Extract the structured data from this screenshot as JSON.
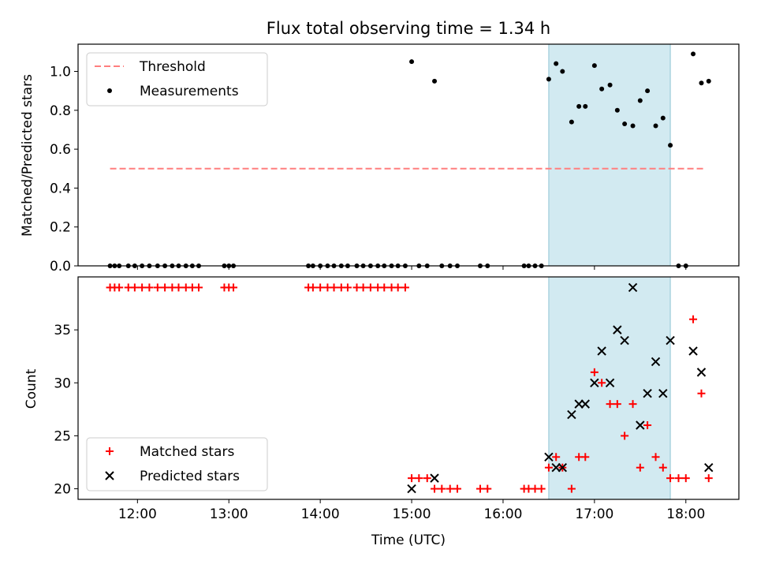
{
  "chart_data": [
    {
      "type": "scatter",
      "title": "Flux total observing time = 1.34 h",
      "ylabel": "Matched/Predicted stars",
      "ylim": [
        0,
        1.14
      ],
      "yticks": [
        0.0,
        0.2,
        0.4,
        0.6,
        0.8,
        1.0
      ],
      "ytick_labels": [
        "0.0",
        "0.2",
        "0.4",
        "0.6",
        "0.8",
        "1.0"
      ],
      "xlim_hours": [
        11.35,
        18.58
      ],
      "highlight_span_hours": [
        16.5,
        17.83
      ],
      "highlight_color": "#add8e6",
      "legend_position": "upper-left",
      "legend": [
        "Threshold",
        "Measurements"
      ],
      "threshold": {
        "name": "Threshold",
        "value": 0.5,
        "x_range_hours": [
          11.7,
          18.2
        ],
        "color": "#ff7f7f",
        "style": "dashed"
      },
      "series": [
        {
          "name": "Measurements",
          "color": "#000000",
          "marker": "dot",
          "x_hours": [
            11.7,
            11.75,
            11.8,
            11.9,
            11.97,
            12.05,
            12.13,
            12.22,
            12.3,
            12.38,
            12.45,
            12.53,
            12.6,
            12.67,
            12.95,
            13.0,
            13.05,
            13.87,
            13.92,
            14.0,
            14.08,
            14.15,
            14.23,
            14.3,
            14.4,
            14.47,
            14.55,
            14.63,
            14.7,
            14.78,
            14.85,
            14.93,
            15.0,
            15.08,
            15.17,
            15.25,
            15.33,
            15.42,
            15.5,
            15.75,
            15.83,
            16.23,
            16.28,
            16.35,
            16.42,
            16.5,
            16.58,
            16.65,
            16.75,
            16.83,
            16.9,
            17.0,
            17.08,
            17.17,
            17.25,
            17.33,
            17.42,
            17.5,
            17.58,
            17.67,
            17.75,
            17.83,
            17.92,
            18.0,
            18.08,
            18.17,
            18.25
          ],
          "y": [
            0,
            0,
            0,
            0,
            0,
            0,
            0,
            0,
            0,
            0,
            0,
            0,
            0,
            0,
            0,
            0,
            0,
            0,
            0,
            0,
            0,
            0,
            0,
            0,
            0,
            0,
            0,
            0,
            0,
            0,
            0,
            0,
            1.05,
            0,
            0,
            0.95,
            0,
            0,
            0,
            0,
            0,
            0,
            0,
            0,
            0,
            0.96,
            1.04,
            1.0,
            0.74,
            0.82,
            0.82,
            1.03,
            0.91,
            0.93,
            0.8,
            0.73,
            0.72,
            0.85,
            0.9,
            0.72,
            0.76,
            0.62,
            0,
            0,
            1.09,
            0.94,
            0.95
          ]
        }
      ]
    },
    {
      "type": "scatter",
      "xlabel": "Time (UTC)",
      "ylabel": "Count",
      "ylim": [
        19,
        40
      ],
      "yticks": [
        20,
        25,
        30,
        35
      ],
      "ytick_labels": [
        "20",
        "25",
        "30",
        "35"
      ],
      "xlim_hours": [
        11.35,
        18.58
      ],
      "xticks_hours": [
        12,
        13,
        14,
        15,
        16,
        17,
        18
      ],
      "xtick_labels": [
        "12:00",
        "13:00",
        "14:00",
        "15:00",
        "16:00",
        "17:00",
        "18:00"
      ],
      "highlight_span_hours": [
        16.5,
        17.83
      ],
      "highlight_color": "#add8e6",
      "legend_position": "lower-left",
      "legend": [
        "Matched stars",
        "Predicted stars"
      ],
      "series": [
        {
          "name": "Matched stars",
          "color": "#ff0000",
          "marker": "plus",
          "x_hours": [
            11.7,
            11.75,
            11.8,
            11.9,
            11.97,
            12.05,
            12.13,
            12.22,
            12.3,
            12.38,
            12.45,
            12.53,
            12.6,
            12.67,
            12.95,
            13.0,
            13.05,
            13.87,
            13.92,
            14.0,
            14.08,
            14.15,
            14.23,
            14.3,
            14.4,
            14.47,
            14.55,
            14.63,
            14.7,
            14.78,
            14.85,
            14.93,
            15.0,
            15.08,
            15.17,
            15.25,
            15.33,
            15.42,
            15.5,
            15.75,
            15.83,
            16.23,
            16.28,
            16.35,
            16.42,
            16.5,
            16.58,
            16.65,
            16.75,
            16.83,
            16.9,
            17.0,
            17.08,
            17.17,
            17.25,
            17.33,
            17.42,
            17.5,
            17.58,
            17.67,
            17.75,
            17.83,
            17.92,
            18.0,
            18.08,
            18.17,
            18.25
          ],
          "y": [
            39,
            39,
            39,
            39,
            39,
            39,
            39,
            39,
            39,
            39,
            39,
            39,
            39,
            39,
            39,
            39,
            39,
            39,
            39,
            39,
            39,
            39,
            39,
            39,
            39,
            39,
            39,
            39,
            39,
            39,
            39,
            39,
            21,
            21,
            21,
            20,
            20,
            20,
            20,
            20,
            20,
            20,
            20,
            20,
            20,
            22,
            23,
            22,
            20,
            23,
            23,
            31,
            30,
            28,
            28,
            25,
            28,
            22,
            26,
            23,
            22,
            21,
            21,
            21,
            36,
            29,
            21
          ]
        },
        {
          "name": "Predicted stars",
          "color": "#000000",
          "marker": "x",
          "x_hours": [
            15.0,
            15.25,
            16.5,
            16.58,
            16.65,
            16.75,
            16.83,
            16.9,
            17.0,
            17.08,
            17.17,
            17.25,
            17.33,
            17.42,
            17.5,
            17.58,
            17.67,
            17.75,
            17.83,
            18.08,
            18.17,
            18.25
          ],
          "y": [
            20,
            21,
            23,
            22,
            22,
            27,
            28,
            28,
            30,
            33,
            30,
            35,
            34,
            39,
            26,
            29,
            32,
            29,
            34,
            33,
            31,
            22
          ]
        }
      ]
    }
  ]
}
